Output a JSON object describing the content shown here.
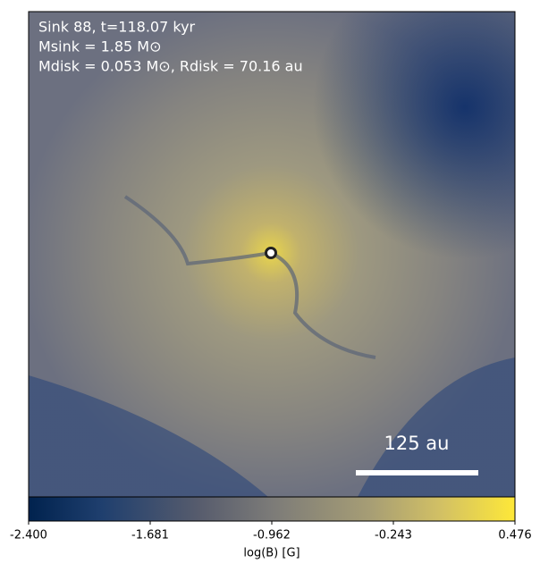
{
  "chart_data": {
    "type": "image",
    "annotations": [
      "Sink 88, t=118.07 kyr",
      "Msink = 1.85 M⊙",
      "Mdisk = 0.053 M⊙, Rdisk = 70.16 au"
    ],
    "scale_bar_label": "125 au",
    "colorbar_label": "log(B) [G]",
    "clim": [
      -2.4,
      0.476
    ],
    "cticks": [
      {
        "value": -2.4,
        "label": "-2.400"
      },
      {
        "value": -1.681,
        "label": "-1.681"
      },
      {
        "value": -0.962,
        "label": "-0.962"
      },
      {
        "value": -0.243,
        "label": "-0.243"
      },
      {
        "value": 0.476,
        "label": "0.476"
      }
    ]
  }
}
